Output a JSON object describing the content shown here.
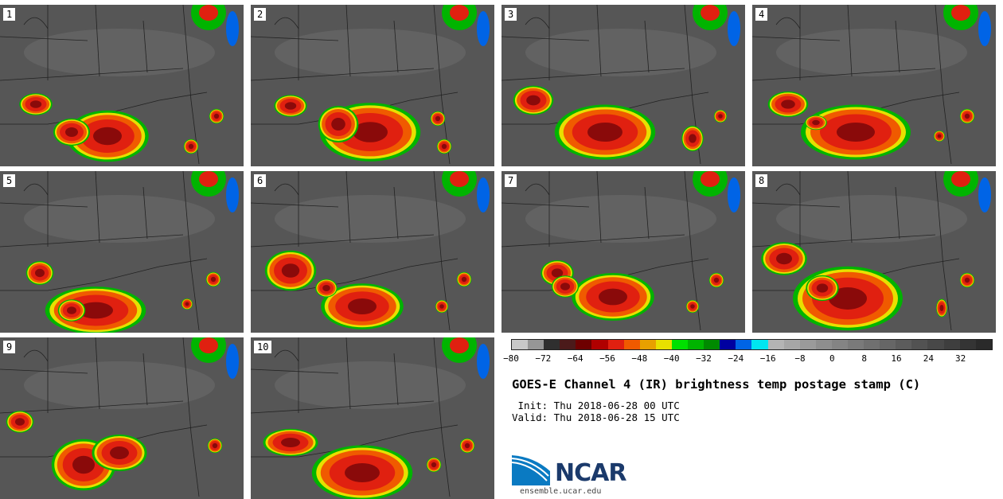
{
  "figure": {
    "title": "GOES-E Channel 4 (IR) brightness temp postage stamp (C)",
    "init": " Init: Thu 2018-06-28 00 UTC",
    "valid": "Valid: Thu 2018-06-28 15 UTC"
  },
  "panels": [
    {
      "label": "1"
    },
    {
      "label": "2"
    },
    {
      "label": "3"
    },
    {
      "label": "4"
    },
    {
      "label": "5"
    },
    {
      "label": "6"
    },
    {
      "label": "7"
    },
    {
      "label": "8"
    },
    {
      "label": "9"
    },
    {
      "label": "10"
    }
  ],
  "colorbar": {
    "ticks": [
      "−80",
      "−72",
      "−64",
      "−56",
      "−48",
      "−40",
      "−32",
      "−24",
      "−16",
      "−8",
      "0",
      "8",
      "16",
      "24",
      "32"
    ],
    "range": [
      -80,
      40
    ],
    "colors": [
      "#c8c8c8",
      "#969696",
      "#2f2f2f",
      "#4b1a1a",
      "#6e0000",
      "#b00000",
      "#e02010",
      "#f05a00",
      "#e8a000",
      "#e8e000",
      "#00e000",
      "#00b400",
      "#008a00",
      "#0000a0",
      "#0064e6",
      "#00e6f0",
      "#b4b4b4",
      "#a6a6a6",
      "#9a9a9a",
      "#8e8e8e",
      "#848484",
      "#7a7a7a",
      "#707070",
      "#666666",
      "#5c5c5c",
      "#525252",
      "#484848",
      "#3e3e3e",
      "#343434",
      "#2a2a2a"
    ]
  },
  "logo": {
    "name": "NCAR",
    "url": "ensemble.ucar.edu"
  }
}
